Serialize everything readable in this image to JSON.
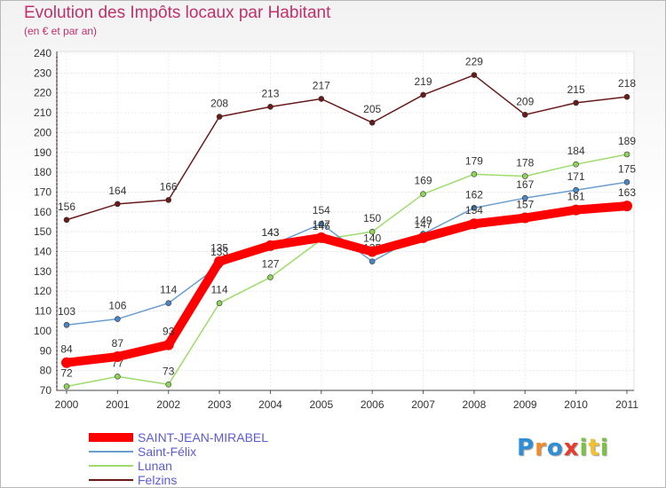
{
  "header": {
    "title": "Evolution des Impôts locaux par Habitant",
    "subtitle": "(en € et par an)"
  },
  "logo": {
    "text": "Proxiti"
  },
  "chart_data": {
    "type": "line",
    "title": "Evolution des Impôts locaux par Habitant",
    "subtitle": "(en € et par an)",
    "xlabel": "",
    "ylabel": "",
    "x": [
      "2000",
      "2001",
      "2002",
      "2003",
      "2004",
      "2005",
      "2006",
      "2007",
      "2008",
      "2009",
      "2010",
      "2011"
    ],
    "ylim": [
      70,
      240
    ],
    "yticks": [
      70,
      80,
      90,
      100,
      110,
      120,
      130,
      140,
      150,
      160,
      170,
      180,
      190,
      200,
      210,
      220,
      230,
      240
    ],
    "grid": true,
    "legend_position": "bottom-left",
    "series": [
      {
        "name": "Felzins",
        "color": "#6b1a1a",
        "values": [
          156,
          164,
          166,
          208,
          213,
          217,
          205,
          219,
          229,
          209,
          215,
          218
        ]
      },
      {
        "name": "Lunan",
        "color": "#9ddc6b",
        "values": [
          72,
          77,
          73,
          114,
          127,
          146,
          150,
          169,
          179,
          178,
          184,
          189
        ]
      },
      {
        "name": "Saint-Félix",
        "color": "#6b9ed0",
        "values": [
          103,
          106,
          114,
          133,
          143,
          154,
          135,
          149,
          162,
          167,
          171,
          175
        ]
      },
      {
        "name": "SAINT-JEAN-MIRABEL",
        "color": "#ff0000",
        "values": [
          84,
          87,
          93,
          135,
          143,
          147,
          140,
          147,
          154,
          157,
          161,
          163
        ]
      }
    ],
    "legend_order": [
      "SAINT-JEAN-MIRABEL",
      "Saint-Félix",
      "Lunan",
      "Felzins"
    ]
  }
}
